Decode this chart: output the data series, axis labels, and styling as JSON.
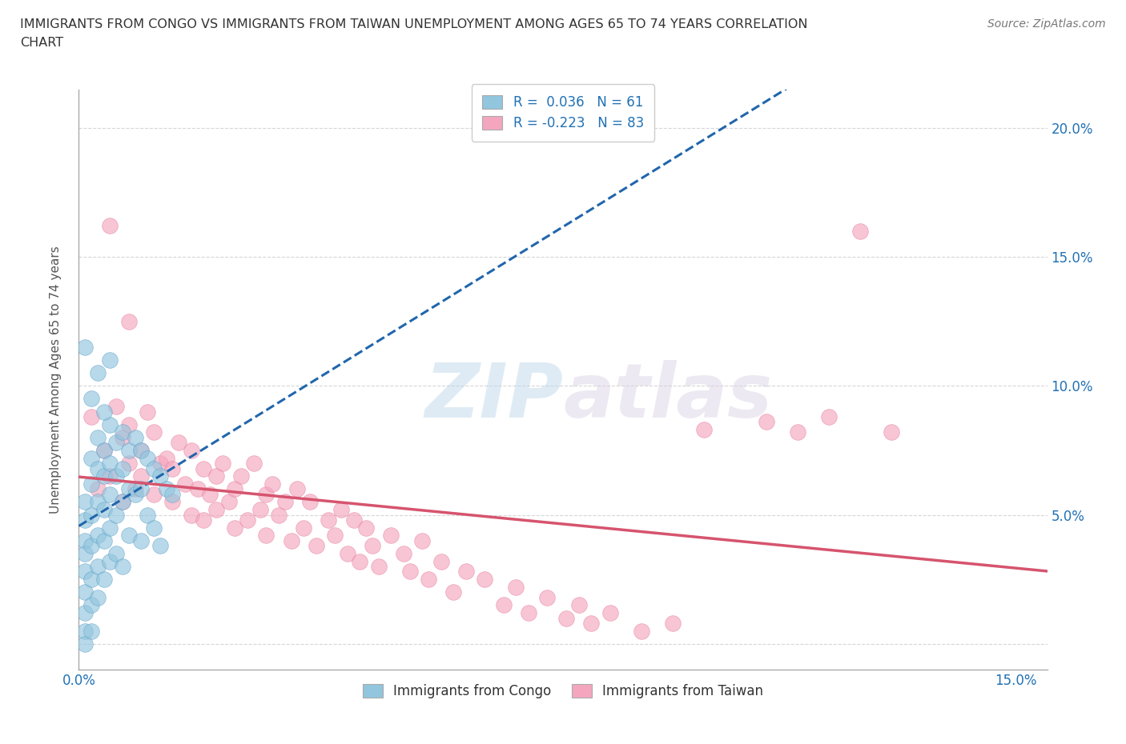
{
  "title_line1": "IMMIGRANTS FROM CONGO VS IMMIGRANTS FROM TAIWAN UNEMPLOYMENT AMONG AGES 65 TO 74 YEARS CORRELATION",
  "title_line2": "CHART",
  "source_text": "Source: ZipAtlas.com",
  "ylabel": "Unemployment Among Ages 65 to 74 years",
  "xlim": [
    0.0,
    0.155
  ],
  "ylim": [
    -0.01,
    0.215
  ],
  "xticks": [
    0.0,
    0.15
  ],
  "xticklabels": [
    "0.0%",
    "15.0%"
  ],
  "yticks": [
    0.0,
    0.05,
    0.1,
    0.15,
    0.2
  ],
  "yticklabels": [
    "",
    "5.0%",
    "10.0%",
    "15.0%",
    "20.0%"
  ],
  "congo_color": "#92c5de",
  "taiwan_color": "#f4a6be",
  "congo_edge_color": "#5a9fc8",
  "taiwan_edge_color": "#e87fa0",
  "congo_line_color": "#2166ac",
  "taiwan_line_color": "#d6546e",
  "R_congo": 0.036,
  "N_congo": 61,
  "R_taiwan": -0.223,
  "N_taiwan": 83,
  "background_color": "#ffffff",
  "grid_color": "#cccccc",
  "congo_scatter_x": [
    0.001,
    0.001,
    0.001,
    0.001,
    0.001,
    0.001,
    0.001,
    0.001,
    0.001,
    0.002,
    0.002,
    0.002,
    0.002,
    0.002,
    0.002,
    0.002,
    0.003,
    0.003,
    0.003,
    0.003,
    0.003,
    0.003,
    0.004,
    0.004,
    0.004,
    0.004,
    0.004,
    0.005,
    0.005,
    0.005,
    0.005,
    0.005,
    0.006,
    0.006,
    0.006,
    0.006,
    0.007,
    0.007,
    0.007,
    0.007,
    0.008,
    0.008,
    0.008,
    0.009,
    0.009,
    0.01,
    0.01,
    0.01,
    0.011,
    0.011,
    0.012,
    0.012,
    0.013,
    0.013,
    0.014,
    0.015,
    0.001,
    0.002,
    0.003,
    0.004,
    0.005
  ],
  "congo_scatter_y": [
    0.055,
    0.048,
    0.04,
    0.035,
    0.028,
    0.02,
    0.012,
    0.005,
    0.0,
    0.072,
    0.062,
    0.05,
    0.038,
    0.025,
    0.015,
    0.005,
    0.08,
    0.068,
    0.055,
    0.042,
    0.03,
    0.018,
    0.075,
    0.065,
    0.052,
    0.04,
    0.025,
    0.085,
    0.07,
    0.058,
    0.045,
    0.032,
    0.078,
    0.065,
    0.05,
    0.035,
    0.082,
    0.068,
    0.055,
    0.03,
    0.075,
    0.06,
    0.042,
    0.08,
    0.058,
    0.075,
    0.06,
    0.04,
    0.072,
    0.05,
    0.068,
    0.045,
    0.065,
    0.038,
    0.06,
    0.058,
    0.115,
    0.095,
    0.105,
    0.09,
    0.11
  ],
  "taiwan_scatter_x": [
    0.002,
    0.003,
    0.004,
    0.005,
    0.006,
    0.007,
    0.007,
    0.008,
    0.008,
    0.009,
    0.01,
    0.01,
    0.011,
    0.012,
    0.012,
    0.013,
    0.014,
    0.015,
    0.015,
    0.016,
    0.017,
    0.018,
    0.018,
    0.019,
    0.02,
    0.02,
    0.021,
    0.022,
    0.022,
    0.023,
    0.024,
    0.025,
    0.025,
    0.026,
    0.027,
    0.028,
    0.029,
    0.03,
    0.03,
    0.031,
    0.032,
    0.033,
    0.034,
    0.035,
    0.036,
    0.037,
    0.038,
    0.04,
    0.041,
    0.042,
    0.043,
    0.044,
    0.045,
    0.046,
    0.047,
    0.048,
    0.05,
    0.052,
    0.053,
    0.055,
    0.056,
    0.058,
    0.06,
    0.062,
    0.065,
    0.068,
    0.07,
    0.072,
    0.075,
    0.078,
    0.08,
    0.082,
    0.085,
    0.09,
    0.095,
    0.1,
    0.11,
    0.115,
    0.12,
    0.125,
    0.13,
    0.005,
    0.008
  ],
  "taiwan_scatter_y": [
    0.088,
    0.06,
    0.075,
    0.065,
    0.092,
    0.055,
    0.08,
    0.07,
    0.085,
    0.06,
    0.075,
    0.065,
    0.09,
    0.058,
    0.082,
    0.07,
    0.072,
    0.055,
    0.068,
    0.078,
    0.062,
    0.05,
    0.075,
    0.06,
    0.068,
    0.048,
    0.058,
    0.065,
    0.052,
    0.07,
    0.055,
    0.06,
    0.045,
    0.065,
    0.048,
    0.07,
    0.052,
    0.058,
    0.042,
    0.062,
    0.05,
    0.055,
    0.04,
    0.06,
    0.045,
    0.055,
    0.038,
    0.048,
    0.042,
    0.052,
    0.035,
    0.048,
    0.032,
    0.045,
    0.038,
    0.03,
    0.042,
    0.035,
    0.028,
    0.04,
    0.025,
    0.032,
    0.02,
    0.028,
    0.025,
    0.015,
    0.022,
    0.012,
    0.018,
    0.01,
    0.015,
    0.008,
    0.012,
    0.005,
    0.008,
    0.083,
    0.086,
    0.082,
    0.088,
    0.16,
    0.082,
    0.162,
    0.125
  ]
}
